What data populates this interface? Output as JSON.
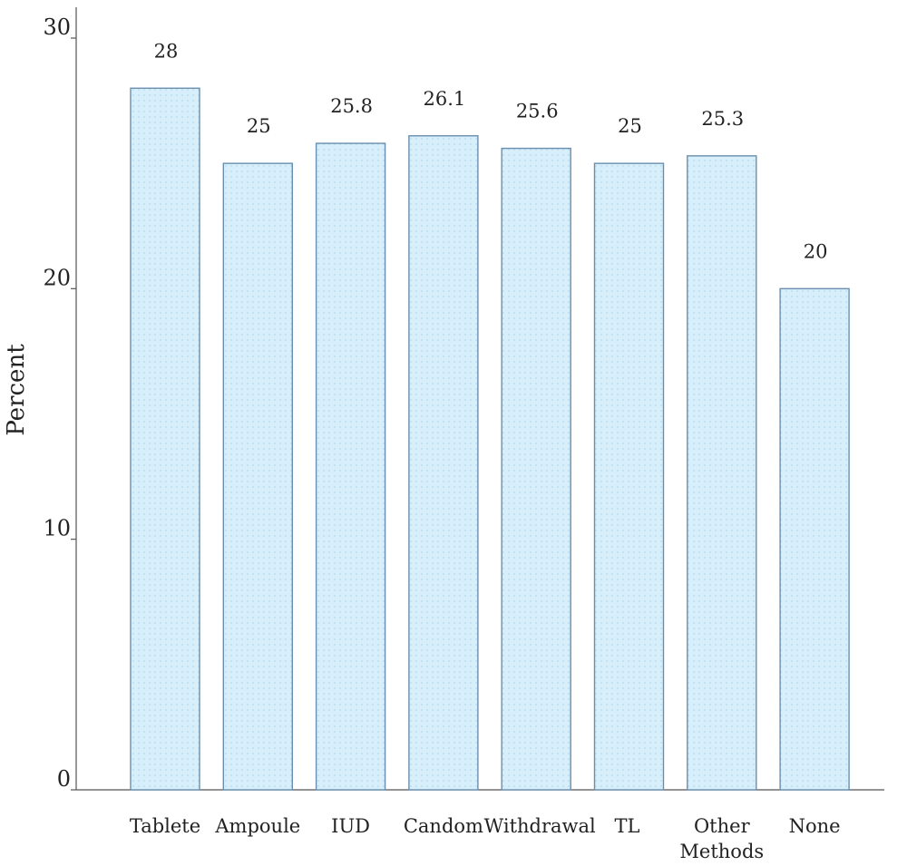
{
  "chart_data": {
    "type": "bar",
    "title": "",
    "xlabel": "",
    "ylabel": "Percent",
    "ylim": [
      0,
      30
    ],
    "yticks": [
      0,
      10,
      20,
      30
    ],
    "categories": [
      "Tablete",
      "Ampoule",
      "IUD",
      "Candom",
      "Withdrawal",
      "TL",
      "Other Methods",
      "None"
    ],
    "category_lines": [
      [
        "Tablete"
      ],
      [
        "Ampoule"
      ],
      [
        "IUD"
      ],
      [
        "Candom"
      ],
      [
        "Withdrawal"
      ],
      [
        "TL"
      ],
      [
        "Other",
        "Methods"
      ],
      [
        "None"
      ]
    ],
    "values": [
      28,
      25,
      25.8,
      26.1,
      25.6,
      25,
      25.3,
      20
    ],
    "value_labels": [
      "28",
      "25",
      "25.8",
      "26.1",
      "25.6",
      "25",
      "25.3",
      "20"
    ],
    "grid": false,
    "bar_fill": "#d6effa",
    "bar_stroke": "#6a8fae",
    "axis_color": "#555555"
  }
}
